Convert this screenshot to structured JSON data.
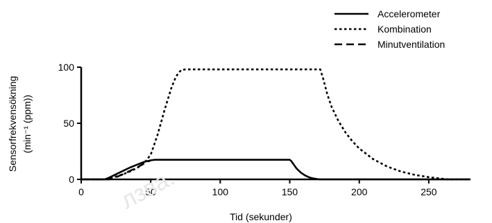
{
  "chart_data": {
    "type": "line",
    "xlabel": "Tid (sekunder)",
    "ylabel_line1": "Sensorfrekvensökning",
    "ylabel_line2": "(min⁻¹ (ppm))",
    "xlim": [
      0,
      280
    ],
    "ylim": [
      0,
      100
    ],
    "xticks": [
      "0",
      "50",
      "100",
      "150",
      "200",
      "250"
    ],
    "yticks": [
      "0",
      "50",
      "100"
    ],
    "legend_position": "top-right",
    "series": [
      {
        "name": "Accelerometer",
        "style": "solid",
        "x": [
          0,
          17,
          20,
          25,
          30,
          35,
          40,
          45,
          50,
          53,
          55,
          150,
          151,
          153,
          155,
          158,
          161,
          164,
          167,
          170,
          172,
          175,
          280
        ],
        "y": [
          0,
          0,
          1.5,
          4.5,
          7.5,
          10.5,
          13,
          15.5,
          17,
          17.5,
          17.5,
          17.5,
          16.5,
          13,
          9.5,
          6,
          3.5,
          1.8,
          0.8,
          0.2,
          0,
          0,
          0
        ]
      },
      {
        "name": "Kombination",
        "style": "dotted",
        "x": [
          0,
          17,
          25,
          30,
          35,
          40,
          45,
          50,
          55,
          60,
          65,
          68,
          70,
          72,
          75,
          100,
          150,
          172,
          174,
          177,
          180,
          185,
          190,
          195,
          200,
          210,
          220,
          230,
          240,
          250,
          260,
          263,
          280
        ],
        "y": [
          0,
          0,
          2.5,
          4.5,
          7,
          10,
          14,
          22,
          40,
          62,
          82,
          91,
          95,
          97.5,
          98,
          98,
          98,
          98,
          90,
          76,
          65,
          52,
          42,
          34,
          27.5,
          18,
          11.5,
          7,
          4,
          2,
          0.5,
          0,
          0
        ]
      },
      {
        "name": "Minutventilation",
        "style": "dashed",
        "x": [
          0,
          20,
          25,
          30,
          35,
          40,
          45,
          50
        ],
        "y": [
          0,
          0,
          2,
          4.5,
          7.5,
          10.5,
          14,
          17
        ]
      }
    ]
  },
  "watermark": "лзва."
}
